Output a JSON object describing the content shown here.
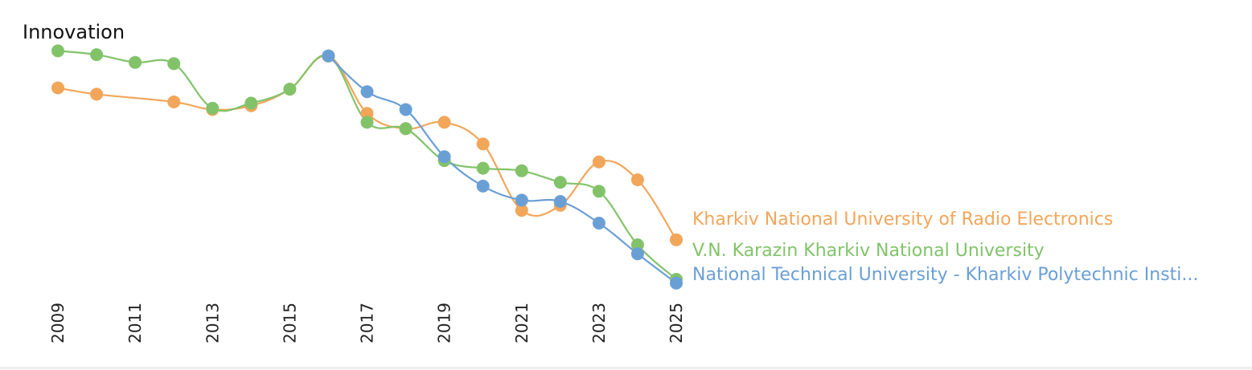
{
  "chart_data": {
    "type": "line",
    "title": "Innovation",
    "xlabel": "",
    "ylabel": "",
    "x": [
      2009,
      2010,
      2011,
      2012,
      2013,
      2014,
      2015,
      2016,
      2017,
      2018,
      2019,
      2020,
      2021,
      2022,
      2023,
      2024,
      2025
    ],
    "x_tick_labels": [
      "2009",
      "2011",
      "2013",
      "2015",
      "2017",
      "2019",
      "2021",
      "2023",
      "2025"
    ],
    "ylim": [
      0,
      100
    ],
    "y_axis_visible": false,
    "grid": false,
    "legend": "end-of-line labels",
    "series": [
      {
        "name": "Kharkiv National University of Radio Electronics",
        "color": "#f2a65a",
        "values": [
          83.5,
          81.0,
          null,
          78.0,
          75.0,
          76.5,
          83.0,
          96.0,
          73.5,
          67.5,
          70.0,
          61.5,
          35.5,
          37.5,
          54.5,
          47.5,
          24.0
        ]
      },
      {
        "name": "V.N. Karazin Kharkiv National University",
        "color": "#82c36a",
        "values": [
          98.0,
          96.5,
          93.5,
          93.0,
          75.5,
          77.5,
          83.0,
          96.0,
          70.0,
          67.5,
          55.0,
          52.0,
          51.0,
          46.5,
          43.0,
          22.0,
          8.5
        ]
      },
      {
        "name": "National Technical University - Kharkiv Polytechnic Insti...",
        "color": "#6a9fd6",
        "values": [
          null,
          null,
          null,
          null,
          null,
          null,
          null,
          96.0,
          82.0,
          75.0,
          56.5,
          45.0,
          39.5,
          39.0,
          30.5,
          18.5,
          7.0
        ]
      }
    ]
  }
}
